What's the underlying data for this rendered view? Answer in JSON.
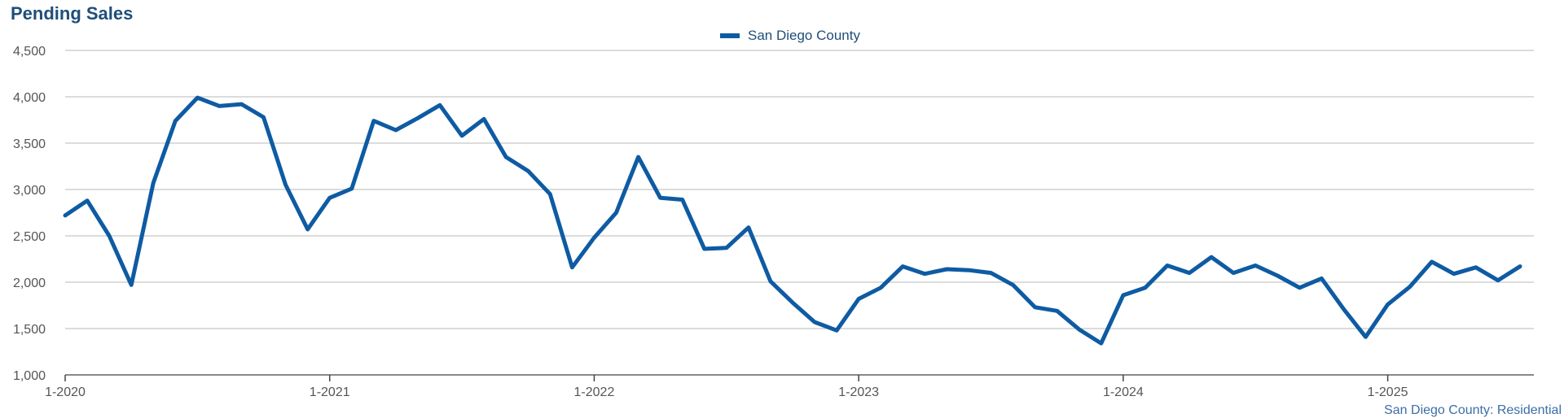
{
  "chart_data": {
    "type": "line",
    "title": "Pending Sales",
    "legend_position": "top-center",
    "grid": true,
    "ylim": [
      1000,
      4500
    ],
    "y_ticks": [
      "1,000",
      "1,500",
      "2,000",
      "2,500",
      "3,000",
      "3,500",
      "4,000",
      "4,500"
    ],
    "x_ticks": [
      "1-2020",
      "1-2021",
      "1-2022",
      "1-2023",
      "1-2024",
      "1-2025"
    ],
    "x_start": "1-2020",
    "series": [
      {
        "name": "San Diego County",
        "color": "#0e5ba3",
        "values": [
          2720,
          2880,
          2500,
          1970,
          3070,
          3740,
          3990,
          3900,
          3920,
          3780,
          3050,
          2570,
          2910,
          3010,
          3740,
          3640,
          3770,
          3910,
          3580,
          3760,
          3350,
          3200,
          2950,
          2160,
          2480,
          2750,
          3350,
          2910,
          2890,
          2360,
          2370,
          2590,
          2010,
          1780,
          1570,
          1480,
          1820,
          1940,
          2170,
          2090,
          2140,
          2130,
          2100,
          1970,
          1730,
          1690,
          1490,
          1340,
          1860,
          1940,
          2180,
          2100,
          2270,
          2100,
          2180,
          2070,
          1940,
          2040,
          1710,
          1410,
          1760,
          1950,
          2220,
          2090,
          2160,
          2020,
          2170
        ]
      }
    ],
    "source_note": "San Diego County: Residential"
  }
}
